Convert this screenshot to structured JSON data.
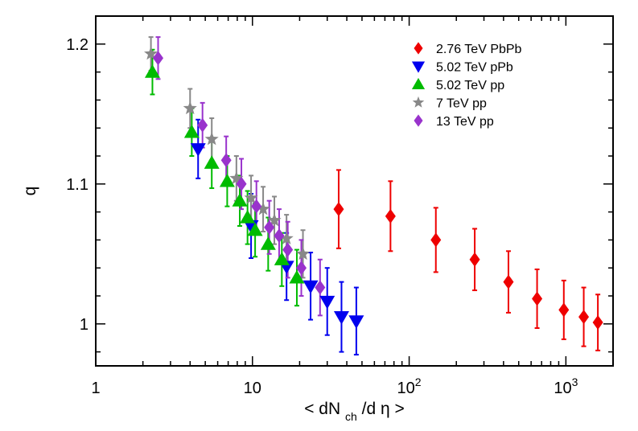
{
  "chart_data": {
    "type": "scatter",
    "title": "",
    "xlabel": {
      "prefix": "< dN",
      "sub": "ch",
      "suffix": "/d η >"
    },
    "ylabel": "q",
    "xscale": "log",
    "xlim": [
      1,
      2000
    ],
    "ylim": [
      0.97,
      1.22
    ],
    "x_ticks": [
      {
        "value": 1,
        "base": "1",
        "exp": ""
      },
      {
        "value": 10,
        "base": "10",
        "exp": ""
      },
      {
        "value": 100,
        "base": "10",
        "exp": "2"
      },
      {
        "value": 1000,
        "base": "10",
        "exp": "3"
      }
    ],
    "y_ticks": [
      {
        "value": 1.0,
        "label": "1"
      },
      {
        "value": 1.1,
        "label": "1.1"
      },
      {
        "value": 1.2,
        "label": "1.2"
      }
    ],
    "y_minor_step": 0.02,
    "grid": false,
    "legend_position": "top-right",
    "series": [
      {
        "name": "2.76 TeV PbPb",
        "marker": "diamond",
        "color": "#ee0000",
        "points": [
          {
            "x": 35.5,
            "y": 1.082,
            "err": 0.028
          },
          {
            "x": 76,
            "y": 1.077,
            "err": 0.025
          },
          {
            "x": 148,
            "y": 1.06,
            "err": 0.023
          },
          {
            "x": 262,
            "y": 1.046,
            "err": 0.022
          },
          {
            "x": 430,
            "y": 1.03,
            "err": 0.022
          },
          {
            "x": 655,
            "y": 1.018,
            "err": 0.021
          },
          {
            "x": 970,
            "y": 1.01,
            "err": 0.021
          },
          {
            "x": 1300,
            "y": 1.005,
            "err": 0.021
          },
          {
            "x": 1600,
            "y": 1.001,
            "err": 0.02
          }
        ]
      },
      {
        "name": "5.02 TeV pPb",
        "marker": "triangle-down",
        "color": "#0000ee",
        "points": [
          {
            "x": 4.5,
            "y": 1.125,
            "err": 0.021
          },
          {
            "x": 9.8,
            "y": 1.07,
            "err": 0.023
          },
          {
            "x": 16.5,
            "y": 1.041,
            "err": 0.024
          },
          {
            "x": 23.5,
            "y": 1.027,
            "err": 0.024
          },
          {
            "x": 30,
            "y": 1.016,
            "err": 0.024
          },
          {
            "x": 37,
            "y": 1.005,
            "err": 0.025
          },
          {
            "x": 46,
            "y": 1.002,
            "err": 0.024
          }
        ]
      },
      {
        "name": "5.02 TeV pp",
        "marker": "triangle-up",
        "color": "#00bb00",
        "points": [
          {
            "x": 2.3,
            "y": 1.18,
            "err": 0.016
          },
          {
            "x": 4.1,
            "y": 1.137,
            "err": 0.017
          },
          {
            "x": 5.5,
            "y": 1.115,
            "err": 0.018
          },
          {
            "x": 6.9,
            "y": 1.102,
            "err": 0.018
          },
          {
            "x": 8.3,
            "y": 1.088,
            "err": 0.018
          },
          {
            "x": 9.3,
            "y": 1.076,
            "err": 0.019
          },
          {
            "x": 10.4,
            "y": 1.067,
            "err": 0.019
          },
          {
            "x": 12.6,
            "y": 1.057,
            "err": 0.019
          },
          {
            "x": 15.4,
            "y": 1.046,
            "err": 0.019
          },
          {
            "x": 19.2,
            "y": 1.033,
            "err": 0.02
          }
        ]
      },
      {
        "name": "7 TeV pp",
        "marker": "star",
        "color": "#888888",
        "points": [
          {
            "x": 2.25,
            "y": 1.193,
            "err": 0.012
          },
          {
            "x": 4.0,
            "y": 1.154,
            "err": 0.014
          },
          {
            "x": 5.5,
            "y": 1.132,
            "err": 0.015
          },
          {
            "x": 7.9,
            "y": 1.104,
            "err": 0.016
          },
          {
            "x": 9.8,
            "y": 1.09,
            "err": 0.016
          },
          {
            "x": 11.7,
            "y": 1.082,
            "err": 0.016
          },
          {
            "x": 13.8,
            "y": 1.074,
            "err": 0.017
          },
          {
            "x": 16.5,
            "y": 1.061,
            "err": 0.017
          },
          {
            "x": 21,
            "y": 1.05,
            "err": 0.017
          }
        ]
      },
      {
        "name": "13 TeV pp",
        "marker": "diamond",
        "color": "#9933cc",
        "points": [
          {
            "x": 2.5,
            "y": 1.19,
            "err": 0.015
          },
          {
            "x": 4.8,
            "y": 1.142,
            "err": 0.016
          },
          {
            "x": 6.8,
            "y": 1.117,
            "err": 0.017
          },
          {
            "x": 8.5,
            "y": 1.1,
            "err": 0.018
          },
          {
            "x": 10.6,
            "y": 1.084,
            "err": 0.018
          },
          {
            "x": 12.8,
            "y": 1.069,
            "err": 0.019
          },
          {
            "x": 14.8,
            "y": 1.063,
            "err": 0.019
          },
          {
            "x": 16.8,
            "y": 1.053,
            "err": 0.02
          },
          {
            "x": 20.5,
            "y": 1.04,
            "err": 0.02
          },
          {
            "x": 27,
            "y": 1.026,
            "err": 0.02
          }
        ]
      }
    ]
  }
}
